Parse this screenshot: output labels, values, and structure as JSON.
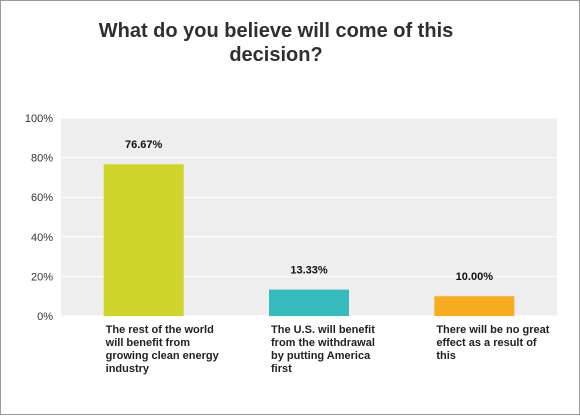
{
  "chart_data": {
    "type": "bar",
    "title": "What do you believe will come of this decision?",
    "categories": [
      "The rest of the world will benefit from growing clean energy industry",
      "The U.S. will benefit from the withdrawal by putting America first",
      "There will be no great effect as a result of this"
    ],
    "values": [
      76.67,
      13.33,
      10.0
    ],
    "value_labels": [
      "76.67%",
      "13.33%",
      "10.00%"
    ],
    "colors": [
      "#cfd52b",
      "#36bbbe",
      "#f7ad1f"
    ],
    "ylim": [
      0,
      100
    ],
    "yticks": [
      0,
      20,
      40,
      60,
      80,
      100
    ],
    "ytick_labels": [
      "0%",
      "20%",
      "40%",
      "60%",
      "80%",
      "100%"
    ],
    "grid": true,
    "legend": "none"
  }
}
